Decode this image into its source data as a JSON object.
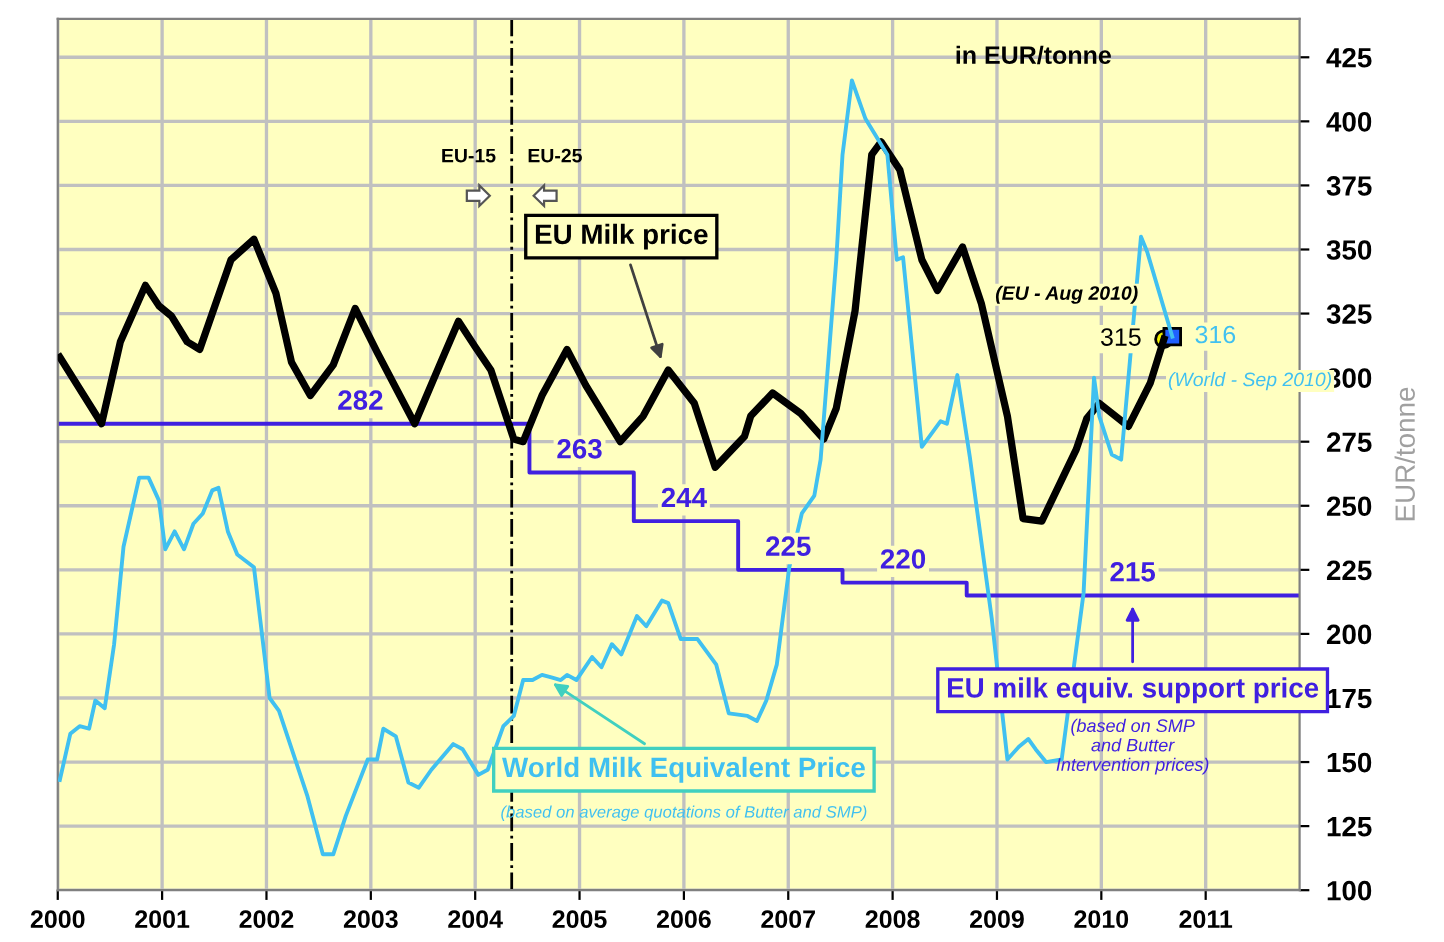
{
  "chart_data": {
    "type": "line",
    "ylabel": "EUR/tonne",
    "xlim": [
      2000,
      2011.9
    ],
    "xticks": [
      2000,
      2001,
      2002,
      2003,
      2004,
      2005,
      2006,
      2007,
      2008,
      2009,
      2010,
      2011
    ],
    "ylim": [
      100,
      440
    ],
    "yticks": [
      100,
      125,
      150,
      175,
      200,
      225,
      250,
      275,
      300,
      325,
      350,
      375,
      400,
      425
    ],
    "grid": true,
    "marker": "none",
    "line_style": "solid",
    "series": [
      {
        "name": "EU Milk price",
        "color": "#000000",
        "x": [
          2000.02,
          2000.42,
          2000.6,
          2000.84,
          2000.97,
          2001.09,
          2001.24,
          2001.36,
          2001.66,
          2001.88,
          2002.09,
          2002.24,
          2002.42,
          2002.64,
          2002.85,
          2003.06,
          2003.42,
          2003.66,
          2003.84,
          2004.0,
          2004.15,
          2004.37,
          2004.46,
          2004.64,
          2004.88,
          2005.06,
          2005.39,
          2005.61,
          2005.85,
          2006.1,
          2006.3,
          2006.58,
          2006.64,
          2006.85,
          2007.12,
          2007.34,
          2007.46,
          2007.64,
          2007.8,
          2007.89,
          2008.07,
          2008.28,
          2008.43,
          2008.67,
          2008.85,
          2009.1,
          2009.25,
          2009.43,
          2009.76,
          2009.86,
          2009.98,
          2010.26,
          2010.47,
          2010.6
        ],
        "values": [
          308,
          282,
          314,
          336,
          328,
          324,
          314,
          311,
          346,
          354,
          333,
          306,
          293,
          305,
          327,
          310,
          282,
          305,
          322,
          312,
          303,
          276,
          275,
          293,
          311,
          297,
          275,
          285,
          303,
          290,
          265,
          277,
          285,
          294,
          286,
          276,
          288,
          326,
          387,
          392,
          381,
          346,
          334,
          351,
          329,
          285,
          245,
          244,
          272,
          284,
          290,
          281,
          298,
          315
        ]
      },
      {
        "name": "World Milk Equivalent Price",
        "color": "#40c0f0",
        "x": [
          2000.02,
          2000.12,
          2000.21,
          2000.3,
          2000.36,
          2000.45,
          2000.54,
          2000.63,
          2000.78,
          2000.87,
          2000.97,
          2001.03,
          2001.12,
          2001.21,
          2001.3,
          2001.39,
          2001.48,
          2001.54,
          2001.63,
          2001.72,
          2001.88,
          2002.03,
          2002.12,
          2002.39,
          2002.54,
          2002.64,
          2002.76,
          2002.97,
          2003.06,
          2003.12,
          2003.24,
          2003.36,
          2003.46,
          2003.58,
          2003.79,
          2003.88,
          2004.03,
          2004.12,
          2004.27,
          2004.37,
          2004.46,
          2004.55,
          2004.64,
          2004.73,
          2004.82,
          2004.88,
          2004.97,
          2005.12,
          2005.21,
          2005.31,
          2005.4,
          2005.55,
          2005.64,
          2005.79,
          2005.85,
          2005.97,
          2006.13,
          2006.31,
          2006.43,
          2006.61,
          2006.7,
          2006.79,
          2006.89,
          2007.01,
          2007.13,
          2007.25,
          2007.31,
          2007.46,
          2007.52,
          2007.61,
          2007.74,
          2007.95,
          2008.04,
          2008.1,
          2008.28,
          2008.46,
          2008.52,
          2008.62,
          2008.74,
          2008.95,
          2009.1,
          2009.21,
          2009.3,
          2009.37,
          2009.47,
          2009.62,
          2009.83,
          2009.93,
          2009.98,
          2010.1,
          2010.19,
          2010.38,
          2010.44,
          2010.68
        ],
        "values": [
          143,
          161,
          164,
          163,
          174,
          171,
          196,
          234,
          261,
          261,
          252,
          233,
          240,
          233,
          243,
          247,
          256,
          257,
          240,
          231,
          226,
          175,
          170,
          137,
          114,
          114,
          129,
          151,
          151,
          163,
          160,
          142,
          140,
          147,
          157,
          155,
          145,
          147,
          164,
          168,
          182,
          182,
          184,
          183,
          182,
          184,
          182,
          191,
          187,
          196,
          192,
          207,
          203,
          213,
          212,
          198,
          198,
          188,
          169,
          168,
          166,
          174,
          188,
          226,
          247,
          254,
          268,
          346,
          387,
          416,
          401,
          387,
          346,
          347,
          273,
          283,
          282,
          301,
          269,
          206,
          151,
          156,
          159,
          155,
          150,
          151,
          216,
          300,
          285,
          270,
          268,
          355,
          349,
          316
        ]
      },
      {
        "name": "EU milk equiv. support price",
        "color": "#4020e0",
        "type": "step",
        "x": [
          2000.0,
          2004.52,
          2005.52,
          2006.52,
          2007.52,
          2008.71,
          2011.9
        ],
        "values": [
          282,
          263,
          244,
          225,
          220,
          215,
          215
        ]
      }
    ],
    "ref_lines": [
      {
        "axis": "x",
        "value": 2004.35,
        "color": "#000000"
      }
    ],
    "annotations": [
      "in EUR/tonne",
      "EU-15",
      "EU-25",
      "(based on average quotations of Butter and SMP)",
      "(based on SMP and Butter Intervention prices)",
      {
        "text": "282",
        "x": 2002.9,
        "y": 282
      },
      {
        "text": "263",
        "x": 2005.0,
        "y": 263
      },
      {
        "text": "244",
        "x": 2006.0,
        "y": 244
      },
      {
        "text": "225",
        "x": 2007.0,
        "y": 225
      },
      {
        "text": "220",
        "x": 2008.1,
        "y": 220
      },
      {
        "text": "215",
        "x": 2010.3,
        "y": 215
      },
      {
        "text": "315",
        "x": 2010.6,
        "y": 315
      },
      {
        "text": "316",
        "x": 2010.68,
        "y": 316
      },
      {
        "text": "(EU - Aug 2010)",
        "x": 2010.6,
        "y": 315
      },
      {
        "text": "(World - Sep 2010)",
        "x": 2010.68,
        "y": 316
      }
    ]
  }
}
